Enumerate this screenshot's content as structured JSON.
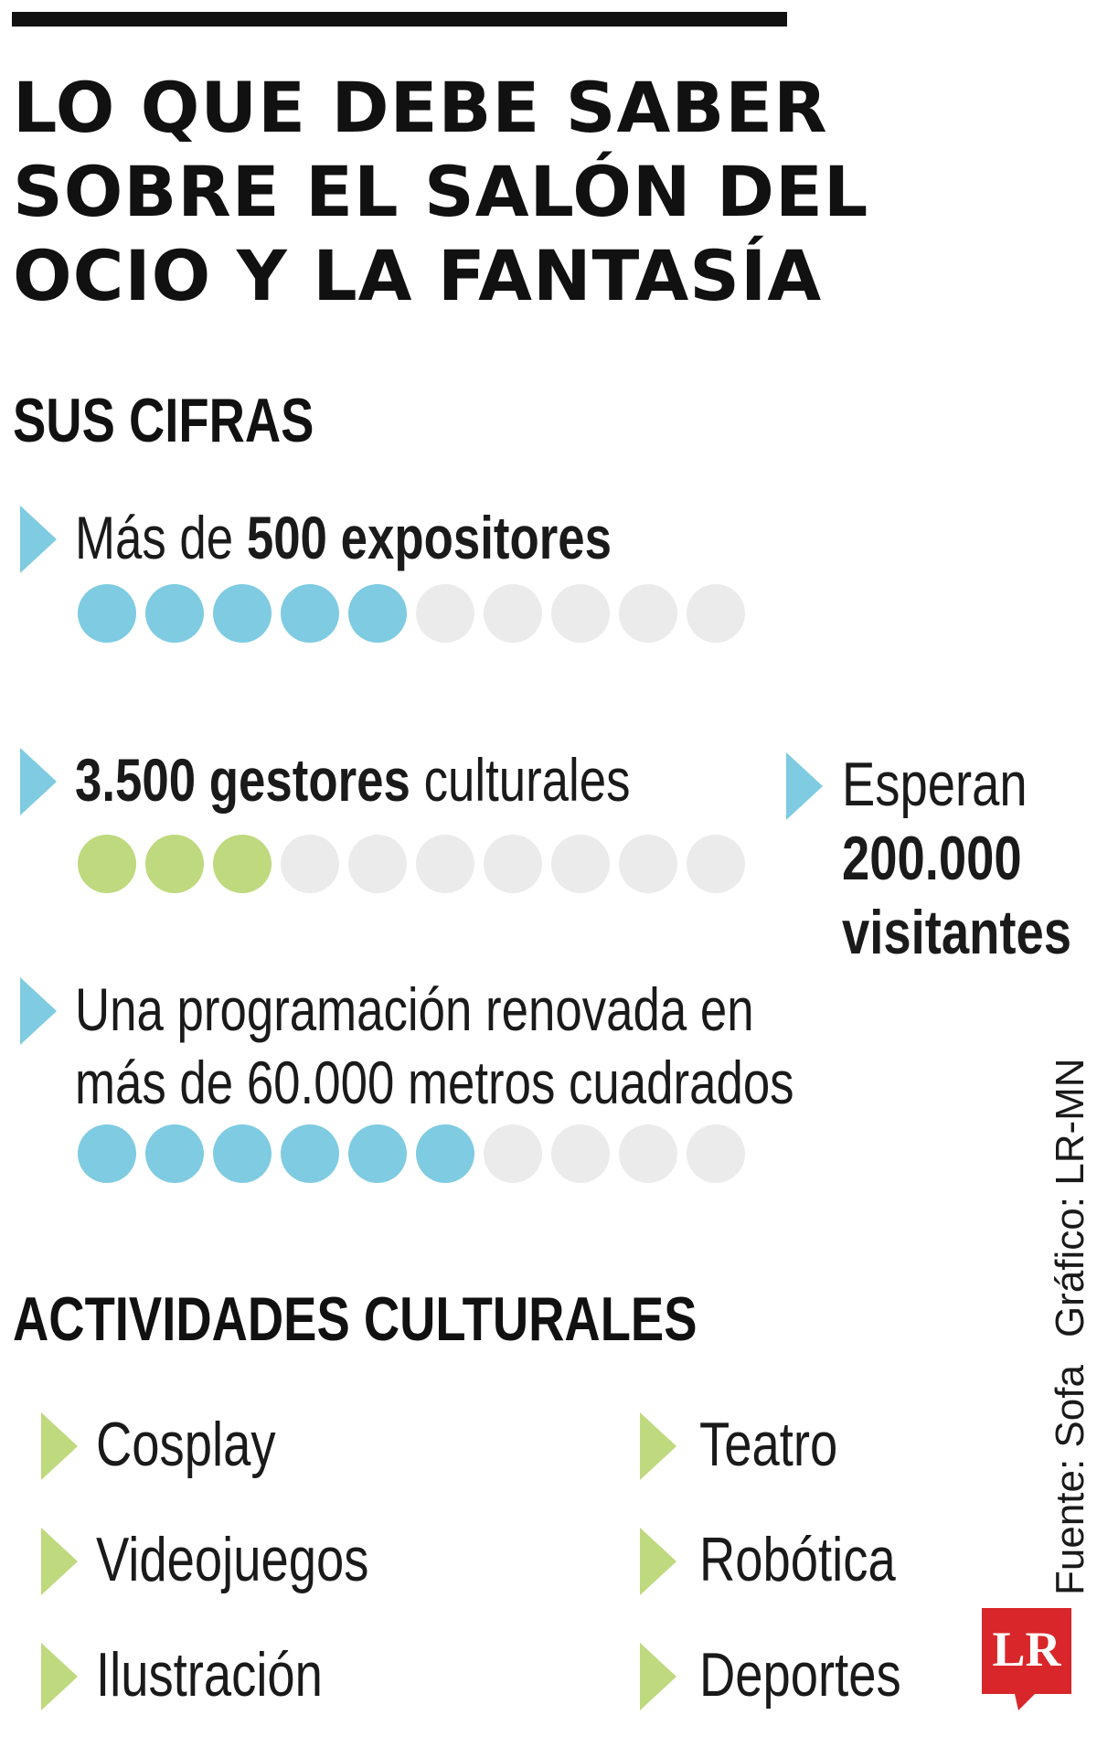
{
  "title": {
    "line1": "LO QUE DEBE SABER",
    "line2": "SOBRE EL SALÓN DEL",
    "line3": "OCIO Y LA FANTASÍA"
  },
  "sections": {
    "figures_heading": "SUS CIFRAS",
    "activities_heading": "ACTIVIDADES CULTURALES"
  },
  "stats": [
    {
      "prefix": "Más de ",
      "bold": "500 expositores",
      "suffix": "",
      "filled": 5,
      "total": 10,
      "color": "#7ecbe2"
    },
    {
      "prefix": "",
      "bold": "3.500 gestores",
      "suffix": " culturales",
      "filled": 3,
      "total": 10,
      "color": "#bfd97e"
    },
    {
      "line1": "Una programación renovada en",
      "line2": "más de 60.000 metros cuadrados",
      "filled": 6,
      "total": 10,
      "color": "#7ecbe2"
    }
  ],
  "visitors": {
    "line1": "Esperan",
    "line2": "200.000",
    "line3": "visitantes"
  },
  "activities": [
    {
      "label": "Cosplay"
    },
    {
      "label": "Videojuegos"
    },
    {
      "label": "Ilustración"
    },
    {
      "label": "Teatro"
    },
    {
      "label": "Robótica"
    },
    {
      "label": "Deportes"
    }
  ],
  "credit": {
    "source": "Fuente: Sofa",
    "graphic": "Gráfico: LR-MN"
  },
  "logo": {
    "text": "LR",
    "color": "#d9262a"
  },
  "colors": {
    "blue": "#7ecbe2",
    "green": "#bfd97e",
    "empty_dot": "#ebebeb",
    "text": "#111111"
  }
}
